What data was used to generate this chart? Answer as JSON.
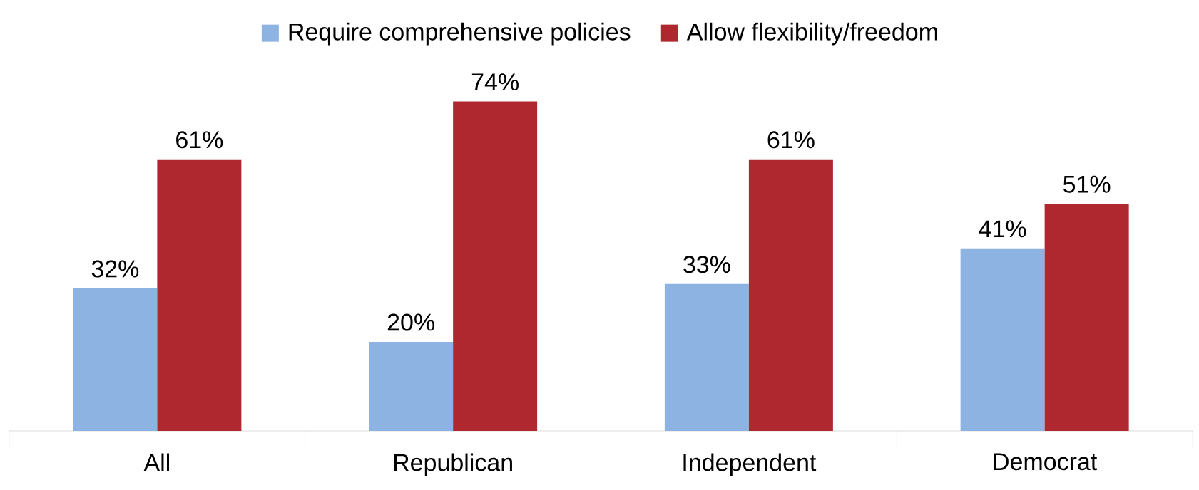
{
  "chart_data": {
    "type": "bar",
    "categories": [
      "All",
      "Republican",
      "Independent",
      "Democrat"
    ],
    "series": [
      {
        "name": "Require comprehensive policies",
        "color": "#8db3e2",
        "values": [
          32,
          20,
          33,
          41
        ],
        "value_labels": [
          "32%",
          "20%",
          "33%",
          "41%"
        ]
      },
      {
        "name": "Allow flexibility/freedom",
        "color": "#b0282f",
        "values": [
          61,
          74,
          61,
          51
        ],
        "value_labels": [
          "61%",
          "74%",
          "61%",
          "51%"
        ]
      }
    ],
    "legend": "top"
  }
}
